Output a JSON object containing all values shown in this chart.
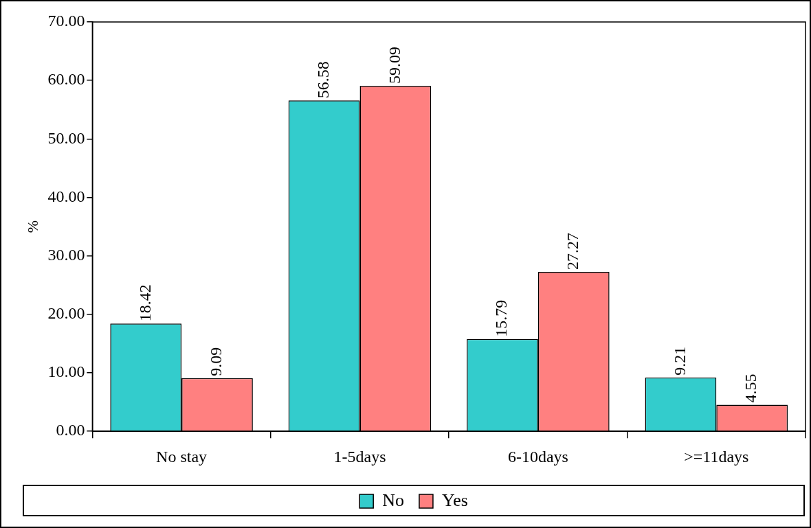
{
  "chart_data": {
    "type": "bar",
    "ylabel": "%",
    "categories": [
      "No stay",
      "1-5days",
      "6-10days",
      ">=11days"
    ],
    "series": [
      {
        "name": "No",
        "color": "#33cccc",
        "values": [
          18.42,
          56.58,
          15.79,
          9.21
        ]
      },
      {
        "name": "Yes",
        "color": "#ff8080",
        "values": [
          9.09,
          59.09,
          27.27,
          4.55
        ]
      }
    ],
    "ylim": [
      0,
      70
    ],
    "yticks": [
      {
        "value": 0,
        "label": "0.00"
      },
      {
        "value": 10,
        "label": "10.00"
      },
      {
        "value": 20,
        "label": "20.00"
      },
      {
        "value": 30,
        "label": "30.00"
      },
      {
        "value": 40,
        "label": "40.00"
      },
      {
        "value": 50,
        "label": "50.00"
      },
      {
        "value": 60,
        "label": "60.00"
      },
      {
        "value": 70,
        "label": "70.00"
      }
    ],
    "data_labels": true,
    "grid": false,
    "legend": "bottom"
  }
}
